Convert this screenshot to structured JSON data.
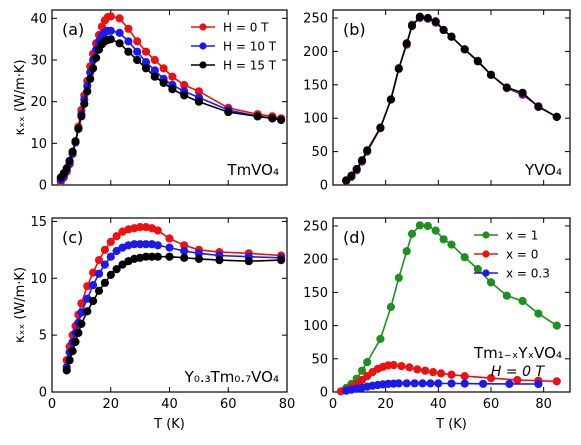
{
  "colors": {
    "red": "#ee1111",
    "blue": "#1a1aee",
    "black": "#000000",
    "green": "#1f8f1f",
    "purple": "#7a1f7a"
  },
  "chart_data": [
    {
      "id": "a",
      "type": "line",
      "panel_label": "(a)",
      "material_label": "TmVO₄",
      "ylabel": "κₓₓ (W/m·K)",
      "xlim": [
        0,
        80
      ],
      "ylim": [
        0,
        42
      ],
      "xticks": [
        0,
        20,
        40,
        60,
        80
      ],
      "yticks": [
        0,
        10,
        20,
        30,
        40
      ],
      "show_xticklabels": false,
      "show_yticklabels": true,
      "legend": {
        "position": "top-right"
      },
      "series": [
        {
          "name": "H = 0 T",
          "color": "red",
          "x": [
            3,
            4,
            5,
            6,
            7,
            8,
            9,
            10,
            11,
            12,
            13,
            14,
            15,
            16,
            17,
            18,
            19,
            20,
            23,
            26,
            29,
            32,
            35,
            38,
            41,
            45,
            50,
            60,
            70,
            75,
            78
          ],
          "y": [
            0.8,
            1.8,
            3.2,
            5.0,
            7.5,
            10.5,
            14.0,
            18.0,
            21.5,
            25.0,
            28.5,
            31.5,
            34.0,
            36.0,
            38.0,
            39.5,
            40.3,
            40.5,
            40.0,
            37.5,
            34.5,
            32.0,
            30.0,
            28.0,
            26.0,
            24.0,
            22.5,
            18.5,
            17.0,
            16.5,
            16.0
          ]
        },
        {
          "name": "H = 10 T",
          "color": "blue",
          "x": [
            3,
            4,
            5,
            6,
            7,
            8,
            9,
            10,
            11,
            12,
            13,
            14,
            15,
            16,
            17,
            18,
            19,
            20,
            23,
            26,
            29,
            32,
            35,
            38,
            41,
            45,
            50,
            60,
            70,
            75,
            78
          ],
          "y": [
            1.2,
            2.2,
            3.6,
            5.2,
            7.5,
            10.2,
            13.5,
            17.0,
            20.5,
            23.8,
            27.0,
            30.0,
            32.5,
            34.5,
            35.8,
            36.6,
            37.0,
            37.0,
            36.5,
            34.5,
            32.0,
            29.5,
            27.5,
            25.5,
            24.0,
            22.5,
            21.0,
            18.0,
            16.5,
            16.0,
            15.7
          ]
        },
        {
          "name": "H = 15 T",
          "color": "black",
          "x": [
            3,
            4,
            5,
            6,
            7,
            8,
            9,
            10,
            11,
            12,
            13,
            14,
            15,
            16,
            17,
            18,
            19,
            20,
            23,
            26,
            29,
            32,
            35,
            38,
            41,
            45,
            50,
            60,
            70,
            75,
            78
          ],
          "y": [
            1.8,
            2.8,
            4.0,
            5.8,
            8.0,
            10.5,
            13.5,
            16.5,
            19.5,
            22.5,
            25.5,
            28.0,
            30.5,
            32.5,
            33.8,
            34.5,
            34.8,
            35.0,
            34.0,
            32.0,
            30.0,
            28.0,
            26.0,
            24.5,
            23.0,
            21.5,
            20.0,
            17.5,
            16.5,
            16.0,
            15.6
          ]
        }
      ]
    },
    {
      "id": "b",
      "type": "line",
      "panel_label": "(b)",
      "material_label": "YVO₄",
      "xlim": [
        0,
        90
      ],
      "ylim": [
        0,
        262
      ],
      "xticks": [
        0,
        20,
        40,
        60,
        80
      ],
      "yticks": [
        0,
        50,
        100,
        150,
        200,
        250
      ],
      "show_xticklabels": false,
      "show_yticklabels": true,
      "series": [
        {
          "color": "purple",
          "x": [
            5,
            7,
            9,
            11,
            13,
            18,
            22,
            25,
            28,
            30,
            33,
            36,
            39,
            42,
            45,
            50,
            55,
            60,
            66,
            72,
            78,
            85
          ],
          "y": [
            6,
            12,
            22,
            35,
            50,
            85,
            128,
            175,
            210,
            240,
            250,
            249,
            243,
            232,
            222,
            203,
            186,
            165,
            145,
            135,
            118,
            102
          ]
        },
        {
          "color": "black",
          "x": [
            5,
            7,
            9,
            11,
            13,
            18,
            22,
            25,
            28,
            30,
            33,
            36,
            39,
            42,
            45,
            50,
            55,
            60,
            66,
            72,
            78,
            85
          ],
          "y": [
            7,
            14,
            24,
            37,
            52,
            86,
            128,
            174,
            212,
            238,
            252,
            250,
            245,
            232,
            222,
            203,
            185,
            165,
            146,
            138,
            117,
            102
          ]
        }
      ]
    },
    {
      "id": "c",
      "type": "line",
      "panel_label": "(c)",
      "material_label": "Y₀.₃Tm₀.₇VO₄",
      "ylabel": "κₓₓ (W/m·K)",
      "xlabel": "T (K)",
      "xlim": [
        0,
        80
      ],
      "ylim": [
        0,
        15.3
      ],
      "xticks": [
        0,
        20,
        40,
        60,
        80
      ],
      "yticks": [
        0,
        5,
        10,
        15
      ],
      "xticklabels": [
        "0",
        "20",
        "40",
        "60",
        "80"
      ],
      "show_xticklabels": true,
      "show_yticklabels": true,
      "series": [
        {
          "color": "red",
          "x": [
            5,
            6,
            7,
            8,
            9,
            10,
            12,
            14,
            16,
            18,
            20,
            22,
            24,
            26,
            28,
            30,
            32,
            34,
            36,
            40,
            45,
            50,
            57,
            67,
            78
          ],
          "y": [
            2.8,
            4.0,
            5.0,
            5.8,
            6.8,
            7.8,
            9.3,
            10.5,
            11.6,
            12.5,
            13.2,
            13.7,
            14.1,
            14.3,
            14.4,
            14.5,
            14.5,
            14.4,
            14.2,
            13.5,
            12.9,
            12.5,
            12.3,
            12.2,
            12.0
          ]
        },
        {
          "color": "blue",
          "x": [
            5,
            6,
            7,
            8,
            9,
            10,
            12,
            14,
            16,
            18,
            20,
            22,
            24,
            26,
            28,
            30,
            32,
            34,
            36,
            40,
            45,
            50,
            57,
            67,
            78
          ],
          "y": [
            2.2,
            3.5,
            4.4,
            5.2,
            6.1,
            7.0,
            8.2,
            9.4,
            10.4,
            11.2,
            11.9,
            12.4,
            12.7,
            12.9,
            13.0,
            13.0,
            13.0,
            13.0,
            12.9,
            12.7,
            12.4,
            12.2,
            12.0,
            11.9,
            11.8
          ]
        },
        {
          "color": "black",
          "x": [
            5,
            6,
            7,
            8,
            9,
            10,
            12,
            14,
            16,
            18,
            20,
            22,
            24,
            26,
            28,
            30,
            32,
            34,
            36,
            40,
            45,
            50,
            57,
            67,
            78
          ],
          "y": [
            1.9,
            2.8,
            3.6,
            4.4,
            5.2,
            6.0,
            7.1,
            8.0,
            8.9,
            9.6,
            10.3,
            10.8,
            11.2,
            11.5,
            11.7,
            11.8,
            11.9,
            11.9,
            11.9,
            11.9,
            11.8,
            11.7,
            11.6,
            11.5,
            11.6
          ]
        }
      ]
    },
    {
      "id": "d",
      "type": "line",
      "panel_label": "(d)",
      "material_label": "Tm₁₋ₓYₓVO₄",
      "material_label2": "H = 0 T",
      "xlabel": "T (K)",
      "xlim": [
        0,
        90
      ],
      "ylim": [
        0,
        262
      ],
      "xticks": [
        0,
        20,
        40,
        60,
        80
      ],
      "yticks": [
        0,
        50,
        100,
        150,
        200,
        250
      ],
      "xticklabels": [
        "0",
        "20",
        "40",
        "60",
        "80"
      ],
      "show_xticklabels": true,
      "show_yticklabels": true,
      "legend": {
        "position": "top-right"
      },
      "series": [
        {
          "name": "x = 1",
          "color": "green",
          "x": [
            5,
            7,
            9,
            11,
            13,
            18,
            22,
            25,
            28,
            30,
            33,
            36,
            39,
            42,
            45,
            50,
            55,
            60,
            66,
            72,
            78,
            85
          ],
          "y": [
            6,
            12,
            20,
            32,
            45,
            80,
            128,
            172,
            212,
            238,
            251,
            250,
            243,
            230,
            222,
            203,
            185,
            165,
            145,
            137,
            118,
            100
          ]
        },
        {
          "name": "x = 0",
          "color": "red",
          "x": [
            3,
            5,
            7,
            9,
            11,
            13,
            15,
            17,
            19,
            21,
            23,
            26,
            29,
            32,
            35,
            38,
            41,
            45,
            50,
            60,
            70,
            78,
            85
          ],
          "y": [
            1,
            3,
            7,
            12,
            18,
            24,
            30,
            35,
            38,
            40,
            40.5,
            39,
            37,
            34,
            32,
            30,
            28,
            26,
            24,
            21,
            18,
            17,
            16
          ]
        },
        {
          "name": "x = 0.3",
          "color": "blue",
          "x": [
            5,
            7,
            9,
            11,
            13,
            15,
            17,
            19,
            21,
            23,
            25,
            28,
            31,
            34,
            37,
            40,
            45,
            50,
            57,
            67,
            78
          ],
          "y": [
            2,
            3.5,
            5,
            6.5,
            8,
            9.5,
            10.5,
            11.5,
            12.2,
            12.7,
            13,
            13.1,
            13.1,
            13,
            13,
            12.9,
            12.8,
            12.6,
            12.4,
            12.2,
            12
          ]
        }
      ]
    }
  ]
}
